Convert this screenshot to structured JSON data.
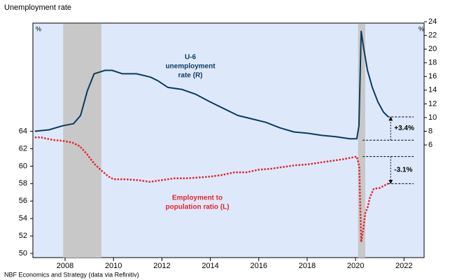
{
  "chart_data": {
    "type": "line",
    "title": "Unemployment rate",
    "source": "NBF Economics and Strategy (data via Refinitiv)",
    "ylabel": "%",
    "y2label": "%",
    "xlim": [
      2006.67,
      2022.83
    ],
    "xticks": [
      2008,
      2010,
      2012,
      2014,
      2016,
      2018,
      2020,
      2022
    ],
    "ylim": [
      49.52,
      76.4
    ],
    "yticks": [
      50,
      52,
      54,
      56,
      58,
      60,
      62,
      64
    ],
    "y2lim": [
      -10.46,
      23.8
    ],
    "y2ticks": [
      6,
      8,
      10,
      12,
      14,
      16,
      18,
      20,
      22,
      24
    ],
    "shaded": [
      [
        2007.92,
        2009.5
      ],
      [
        2020.1,
        2020.4
      ]
    ],
    "series": [
      {
        "name": "U-6 unemployment rate (R)",
        "axis": "y2",
        "color": "#0d3a5c",
        "style": "solid",
        "x": [
          2006.75,
          2007.33,
          2007.9,
          2008.35,
          2008.64,
          2008.92,
          2009.2,
          2009.65,
          2009.94,
          2010.37,
          2010.95,
          2011.53,
          2011.82,
          2012.25,
          2012.83,
          2013.4,
          2013.98,
          2014.56,
          2015.14,
          2015.72,
          2016.3,
          2016.87,
          2017.45,
          2018.03,
          2018.6,
          2019.18,
          2019.76,
          2020.05,
          2020.14,
          2020.23,
          2020.34,
          2020.49,
          2020.69,
          2020.92,
          2021.15,
          2021.35
        ],
        "values": [
          8.0,
          8.2,
          8.8,
          9.1,
          10.3,
          13.9,
          16.4,
          16.9,
          16.9,
          16.4,
          16.4,
          15.9,
          15.4,
          14.4,
          14.1,
          13.4,
          12.3,
          11.3,
          10.3,
          9.8,
          9.3,
          8.5,
          7.9,
          7.7,
          7.4,
          7.2,
          6.9,
          6.9,
          8.8,
          22.6,
          20.0,
          16.9,
          14.4,
          12.3,
          10.8,
          10.1
        ]
      },
      {
        "name": "Employment to population ratio (L)",
        "color": "#e8232c",
        "style": "dotted",
        "x": [
          2006.75,
          2007.0,
          2007.5,
          2007.9,
          2008.3,
          2008.6,
          2008.9,
          2009.2,
          2009.5,
          2009.8,
          2010.0,
          2010.5,
          2011.0,
          2011.5,
          2012.0,
          2012.5,
          2013.0,
          2013.5,
          2014.0,
          2014.5,
          2015.0,
          2015.5,
          2016.0,
          2016.5,
          2017.0,
          2017.5,
          2018.0,
          2018.5,
          2019.0,
          2019.5,
          2020.05,
          2020.15,
          2020.23,
          2020.32,
          2020.4,
          2020.5,
          2020.6,
          2020.75,
          2021.0,
          2021.2,
          2021.35
        ],
        "values": [
          63.3,
          63.3,
          63.0,
          62.9,
          62.7,
          62.3,
          61.4,
          60.3,
          59.5,
          58.8,
          58.5,
          58.5,
          58.4,
          58.2,
          58.4,
          58.6,
          58.6,
          58.7,
          58.8,
          59.0,
          59.3,
          59.3,
          59.6,
          59.7,
          59.9,
          60.1,
          60.2,
          60.4,
          60.6,
          60.8,
          61.1,
          60.0,
          51.3,
          52.8,
          54.6,
          55.3,
          56.5,
          57.4,
          57.5,
          57.8,
          58.0
        ]
      }
    ],
    "annotations": [
      {
        "lines": [
          "U-6",
          "unemployment",
          "rate (R)"
        ],
        "color": "#0d3a5c"
      },
      {
        "lines": [
          "Employment to",
          "population ratio (L)"
        ],
        "color": "#e8232c"
      }
    ],
    "changes": [
      {
        "label": "+3.4%",
        "axis": "y2",
        "from": 6.7,
        "to": 10.1
      },
      {
        "label": "-3.1%",
        "axis": "y",
        "from": 61.1,
        "to": 58.0
      }
    ]
  }
}
